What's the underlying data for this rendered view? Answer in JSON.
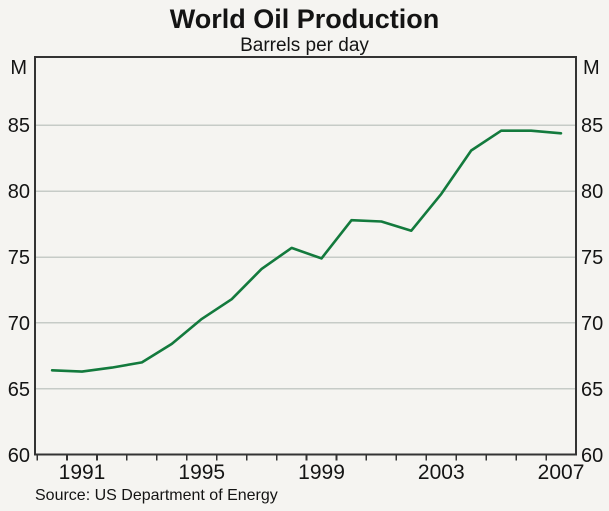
{
  "title": "World Oil Production",
  "subtitle": "Barrels per day",
  "source": "Source: US Department of Energy",
  "axis_unit_left": "M",
  "axis_unit_right": "M",
  "colors": {
    "line": "#137a3d",
    "grid": "#c6cbc7",
    "frame": "#333333",
    "background": "#f5f4f1",
    "text": "#141414"
  },
  "chart_data": {
    "type": "line",
    "title": "World Oil Production",
    "subtitle": "Barrels per day",
    "ylabel": "M (millions of barrels per day)",
    "x": [
      1990,
      1991,
      1992,
      1993,
      1994,
      1995,
      1996,
      1997,
      1998,
      1999,
      2000,
      2001,
      2002,
      2003,
      2004,
      2005,
      2006,
      2007
    ],
    "values": [
      66.4,
      66.3,
      66.6,
      67.0,
      68.4,
      70.3,
      71.8,
      74.1,
      75.7,
      74.9,
      77.8,
      77.7,
      77.0,
      79.8,
      83.1,
      84.6,
      84.6,
      84.4
    ],
    "ylim": [
      60,
      90.2
    ],
    "xlim": [
      1989.43,
      2007.5
    ],
    "yticks": [
      60,
      65,
      70,
      75,
      80,
      85
    ],
    "xtick_labels": [
      "1991",
      "1995",
      "1999",
      "2003",
      "2007"
    ],
    "xtick_minor_interval": 1,
    "grid": "horizontal",
    "legend": "none"
  }
}
